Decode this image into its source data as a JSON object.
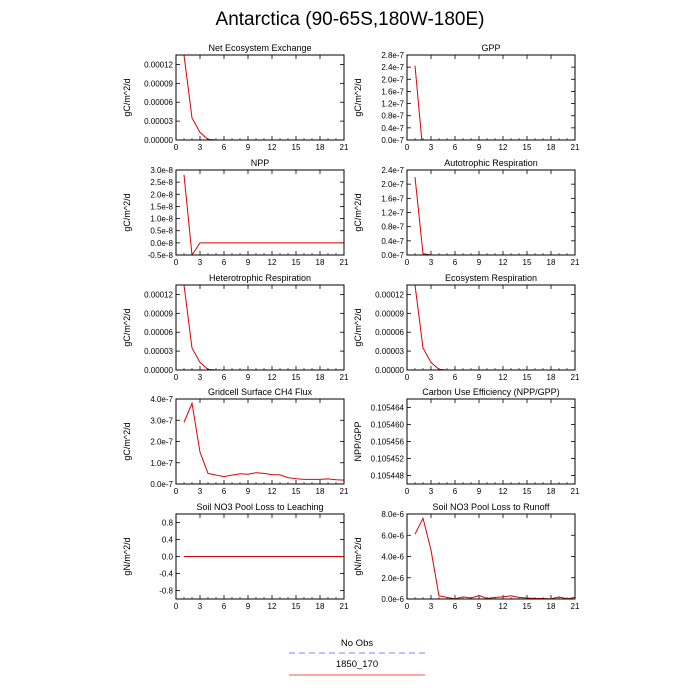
{
  "page_title": "Antarctica (90-65S,180W-180E)",
  "legend": {
    "items": [
      {
        "label": "No Obs",
        "color": "#8080ff",
        "dash": true
      },
      {
        "label": "1850_170",
        "color": "#ff5050",
        "dash": false
      }
    ]
  },
  "chart_data": [
    {
      "type": "line",
      "title": "Net Ecosystem Exchange",
      "ylabel": "gC/m^2/d",
      "ylim": [
        0,
        0.000135
      ],
      "yticks": [
        0,
        3e-05,
        6e-05,
        9e-05,
        0.00012
      ],
      "yticklabels": [
        "0.00000",
        "0.00003",
        "0.00006",
        "0.00009",
        "0.00012"
      ],
      "xlim": [
        0,
        21
      ],
      "xticks": [
        0,
        3,
        6,
        9,
        12,
        15,
        18,
        21
      ],
      "series": [
        {
          "color": "#e00000",
          "x": [
            1,
            2,
            3,
            4,
            5,
            6,
            7,
            8,
            9,
            10,
            11,
            12,
            13,
            14,
            15,
            16,
            17,
            18,
            19,
            20,
            21
          ],
          "y": [
            0.000135,
            3.5e-05,
            1.2e-05,
            1e-06,
            0,
            0,
            0,
            0,
            0,
            0,
            0,
            0,
            0,
            0,
            0,
            0,
            0,
            0,
            0,
            0,
            0
          ]
        }
      ]
    },
    {
      "type": "line",
      "title": "GPP",
      "ylabel": "gC/m^2/d",
      "ylim": [
        0,
        2.8e-07
      ],
      "yticks": [
        0,
        4e-08,
        8e-08,
        1.2e-07,
        1.6e-07,
        2e-07,
        2.4e-07,
        2.8e-07
      ],
      "yticklabels": [
        "0.0e-7",
        "0.4e-7",
        "0.8e-7",
        "1.2e-7",
        "1.6e-7",
        "2.0e-7",
        "2.4e-7",
        "2.8e-7"
      ],
      "xlim": [
        0,
        21
      ],
      "xticks": [
        0,
        3,
        6,
        9,
        12,
        15,
        18,
        21
      ],
      "series": [
        {
          "color": "#e00000",
          "x": [
            1,
            1.85
          ],
          "y": [
            2.45e-07,
            0
          ]
        }
      ]
    },
    {
      "type": "line",
      "title": "NPP",
      "ylabel": "gC/m^2/d",
      "ylim": [
        -5e-09,
        3e-08
      ],
      "yticks": [
        -5e-09,
        0,
        5e-09,
        1e-08,
        1.5e-08,
        2e-08,
        2.5e-08,
        3e-08
      ],
      "yticklabels": [
        "-0.5e-8",
        "0.0e-8",
        "0.5e-8",
        "1.0e-8",
        "1.5e-8",
        "2.0e-8",
        "2.5e-8",
        "3.0e-8"
      ],
      "xlim": [
        0,
        21
      ],
      "xticks": [
        0,
        3,
        6,
        9,
        12,
        15,
        18,
        21
      ],
      "series": [
        {
          "color": "#e00000",
          "x": [
            1,
            2,
            3,
            4,
            5,
            6,
            7,
            8,
            9,
            10,
            11,
            12,
            13,
            14,
            15,
            16,
            17,
            18,
            19,
            20,
            21
          ],
          "y": [
            2.8e-08,
            -5e-09,
            0,
            0,
            0,
            0,
            0,
            0,
            0,
            0,
            0,
            0,
            0,
            0,
            0,
            0,
            0,
            0,
            0,
            0,
            0
          ]
        }
      ]
    },
    {
      "type": "line",
      "title": "Autotrophic Respiration",
      "ylabel": "gC/m^2/d",
      "ylim": [
        0,
        2.4e-07
      ],
      "yticks": [
        0,
        4e-08,
        8e-08,
        1.2e-07,
        1.6e-07,
        2e-07,
        2.4e-07
      ],
      "yticklabels": [
        "0.0e-7",
        "0.4e-7",
        "0.8e-7",
        "1.2e-7",
        "1.6e-7",
        "2.0e-7",
        "2.4e-7"
      ],
      "xlim": [
        0,
        21
      ],
      "xticks": [
        0,
        3,
        6,
        9,
        12,
        15,
        18,
        21
      ],
      "series": [
        {
          "color": "#e00000",
          "x": [
            1,
            2,
            3,
            4,
            5,
            6,
            7,
            8,
            9,
            10,
            11,
            12,
            13,
            14,
            15,
            16,
            17,
            18,
            19,
            20,
            21
          ],
          "y": [
            2.2e-07,
            4e-09,
            0,
            0,
            0,
            0,
            0,
            0,
            0,
            0,
            0,
            0,
            0,
            0,
            0,
            0,
            0,
            0,
            0,
            0,
            0
          ]
        }
      ]
    },
    {
      "type": "line",
      "title": "Heterotrophic Respiration",
      "ylabel": "gC/m^2/d",
      "ylim": [
        0,
        0.000135
      ],
      "yticks": [
        0,
        3e-05,
        6e-05,
        9e-05,
        0.00012
      ],
      "yticklabels": [
        "0.00000",
        "0.00003",
        "0.00006",
        "0.00009",
        "0.00012"
      ],
      "xlim": [
        0,
        21
      ],
      "xticks": [
        0,
        3,
        6,
        9,
        12,
        15,
        18,
        21
      ],
      "series": [
        {
          "color": "#e00000",
          "x": [
            1,
            2,
            3,
            4,
            5,
            6,
            7,
            8,
            9,
            10,
            11,
            12,
            13,
            14,
            15,
            16,
            17,
            18,
            19,
            20,
            21
          ],
          "y": [
            0.000135,
            3.5e-05,
            1.2e-05,
            1e-06,
            0,
            0,
            0,
            0,
            0,
            0,
            0,
            0,
            0,
            0,
            0,
            0,
            0,
            0,
            0,
            0,
            0
          ]
        }
      ]
    },
    {
      "type": "line",
      "title": "Ecosystem Respiration",
      "ylabel": "gC/m^2/d",
      "ylim": [
        0,
        0.000135
      ],
      "yticks": [
        0,
        3e-05,
        6e-05,
        9e-05,
        0.00012
      ],
      "yticklabels": [
        "0.00000",
        "0.00003",
        "0.00006",
        "0.00009",
        "0.00012"
      ],
      "xlim": [
        0,
        21
      ],
      "xticks": [
        0,
        3,
        6,
        9,
        12,
        15,
        18,
        21
      ],
      "series": [
        {
          "color": "#e00000",
          "x": [
            1,
            2,
            3,
            4,
            5,
            6,
            7,
            8,
            9,
            10,
            11,
            12,
            13,
            14,
            15,
            16,
            17,
            18,
            19,
            20,
            21
          ],
          "y": [
            0.000135,
            3.5e-05,
            1.2e-05,
            1e-06,
            0,
            0,
            0,
            0,
            0,
            0,
            0,
            0,
            0,
            0,
            0,
            0,
            0,
            0,
            0,
            0,
            0
          ]
        }
      ]
    },
    {
      "type": "line",
      "title": "Gridcell Surface CH4 Flux",
      "ylabel": "gC/m^2/d",
      "ylim": [
        0,
        4e-07
      ],
      "yticks": [
        0,
        1e-07,
        2e-07,
        3e-07,
        4e-07
      ],
      "yticklabels": [
        "0.0e-7",
        "1.0e-7",
        "2.0e-7",
        "3.0e-7",
        "4.0e-7"
      ],
      "xlim": [
        0,
        21
      ],
      "xticks": [
        0,
        3,
        6,
        9,
        12,
        15,
        18,
        21
      ],
      "series": [
        {
          "color": "#e00000",
          "x": [
            1,
            2,
            3,
            4,
            5,
            6,
            7,
            8,
            9,
            10,
            11,
            12,
            13,
            14,
            15,
            16,
            17,
            18,
            19,
            20,
            21
          ],
          "y": [
            2.9e-07,
            3.8e-07,
            1.5e-07,
            5e-08,
            4.2e-08,
            3.5e-08,
            4.2e-08,
            4.8e-08,
            4.6e-08,
            5.3e-08,
            5e-08,
            4.4e-08,
            4.3e-08,
            3e-08,
            2.5e-08,
            2.2e-08,
            2.2e-08,
            2.2e-08,
            2.4e-08,
            2e-08,
            1.8e-08
          ]
        }
      ]
    },
    {
      "type": "line",
      "title": "Carbon Use Efficiency (NPP/GPP)",
      "ylabel": "NPP/GPP",
      "ylim": [
        0.105446,
        0.105466
      ],
      "yticks": [
        0.105448,
        0.105452,
        0.105456,
        0.10546,
        0.105464
      ],
      "yticklabels": [
        "0.105448",
        "0.105452",
        "0.105456",
        "0.105460",
        "0.105464"
      ],
      "xlim": [
        0,
        21
      ],
      "xticks": [
        0,
        3,
        6,
        9,
        12,
        15,
        18,
        21
      ],
      "series": []
    },
    {
      "type": "line",
      "title": "Soil NO3 Pool Loss to Leaching",
      "ylabel": "gN/m^2/d",
      "ylim": [
        -1,
        1
      ],
      "yticks": [
        -0.8,
        -0.4,
        0,
        0.4,
        0.8
      ],
      "yticklabels": [
        "-0.8",
        "-0.4",
        "0.0",
        "0.4",
        "0.8"
      ],
      "xlim": [
        0,
        21
      ],
      "xticks": [
        0,
        3,
        6,
        9,
        12,
        15,
        18,
        21
      ],
      "series": [
        {
          "color": "#e00000",
          "x": [
            1,
            2,
            3,
            4,
            5,
            6,
            7,
            8,
            9,
            10,
            11,
            12,
            13,
            14,
            15,
            16,
            17,
            18,
            19,
            20,
            21
          ],
          "y": [
            0,
            0,
            0,
            0,
            0,
            0,
            0,
            0,
            0,
            0,
            0,
            0,
            0,
            0,
            0,
            0,
            0,
            0,
            0,
            0,
            0
          ]
        }
      ]
    },
    {
      "type": "line",
      "title": "Soil NO3 Pool Loss to Runoff",
      "ylabel": "gN/m^2/d",
      "ylim": [
        0,
        8e-06
      ],
      "yticks": [
        0,
        2e-06,
        4e-06,
        6e-06,
        8e-06
      ],
      "yticklabels": [
        "0.0e-6",
        "2.0e-6",
        "4.0e-6",
        "6.0e-6",
        "8.0e-6"
      ],
      "xlim": [
        0,
        21
      ],
      "xticks": [
        0,
        3,
        6,
        9,
        12,
        15,
        18,
        21
      ],
      "series": [
        {
          "color": "#e00000",
          "x": [
            1,
            2,
            3,
            4,
            5,
            6,
            7,
            8,
            9,
            10,
            11,
            12,
            13,
            14,
            15,
            16,
            17,
            18,
            19,
            20,
            21
          ],
          "y": [
            6.1e-06,
            7.6e-06,
            4.6e-06,
            3e-07,
            1.5e-07,
            1e-08,
            2e-07,
            1e-07,
            3.3e-07,
            5e-08,
            1.5e-07,
            2e-07,
            3e-07,
            1.5e-07,
            1e-07,
            5e-08,
            5e-08,
            1e-08,
            2e-07,
            1e-08,
            1.5e-07
          ]
        }
      ]
    }
  ]
}
